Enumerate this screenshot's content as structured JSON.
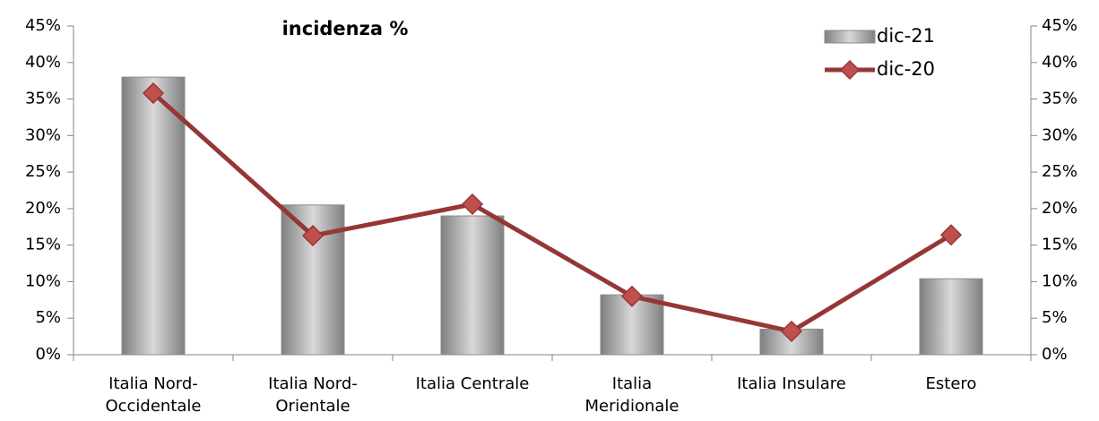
{
  "chart_data": {
    "type": "bar-line",
    "title": "incidenza %",
    "categories": [
      "Italia Nord-\nOccidentale",
      "Italia Nord-\nOrientale",
      "Italia Centrale",
      "Italia\nMeridionale",
      "Italia Insulare",
      "Estero"
    ],
    "series": [
      {
        "name": "dic-21",
        "type": "bar",
        "color": "#a6a6a6",
        "values": [
          38,
          20.5,
          19,
          8.2,
          3.5,
          10.4
        ]
      },
      {
        "name": "dic-20",
        "type": "line",
        "axis": "y2",
        "color": "#953735",
        "marker_color": "#c0504d",
        "values": [
          35.8,
          16.3,
          20.6,
          8,
          3.2,
          16.4
        ]
      }
    ],
    "ylim": [
      0,
      45
    ],
    "yticks": [
      {
        "value": 0,
        "label": "0%"
      },
      {
        "value": 5,
        "label": "5%"
      },
      {
        "value": 10,
        "label": "10%"
      },
      {
        "value": 15,
        "label": "15%"
      },
      {
        "value": 20,
        "label": "20%"
      },
      {
        "value": 25,
        "label": "25%"
      },
      {
        "value": 30,
        "label": "30%"
      },
      {
        "value": 35,
        "label": "35%"
      },
      {
        "value": 40,
        "label": "40%"
      },
      {
        "value": 45,
        "label": "45%"
      }
    ],
    "y2lim": [
      0,
      45
    ],
    "y2ticks": [
      {
        "value": 0,
        "label": "0%"
      },
      {
        "value": 5,
        "label": "5%"
      },
      {
        "value": 10,
        "label": "10%"
      },
      {
        "value": 15,
        "label": "15%"
      },
      {
        "value": 20,
        "label": "20%"
      },
      {
        "value": 25,
        "label": "25%"
      },
      {
        "value": 30,
        "label": "30%"
      },
      {
        "value": 35,
        "label": "35%"
      },
      {
        "value": 40,
        "label": "40%"
      },
      {
        "value": 45,
        "label": "45%"
      }
    ],
    "legend": "top-right",
    "grid": false
  }
}
